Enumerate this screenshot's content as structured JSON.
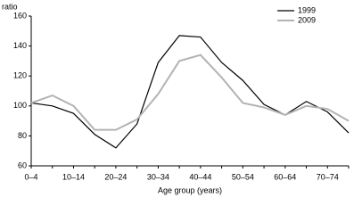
{
  "chart_data": {
    "type": "line",
    "y_label": "ratio",
    "x_label": "Age group (years)",
    "categories": [
      "0–4",
      null,
      "10–14",
      null,
      "20–24",
      null,
      "30–34",
      null,
      "40–44",
      null,
      "50–54",
      null,
      "60–64",
      null,
      "70–74",
      null
    ],
    "series": [
      {
        "name": "1999",
        "color": "#000000",
        "values": [
          102,
          100,
          95,
          81,
          72,
          88,
          129,
          147,
          146,
          129,
          117,
          101,
          94,
          103,
          96,
          82
        ]
      },
      {
        "name": "2009",
        "color": "#b3b3b3",
        "values": [
          102,
          107,
          100,
          84,
          84,
          91,
          108,
          130,
          134,
          119,
          102,
          99,
          94,
          100,
          98,
          90
        ]
      }
    ],
    "ylim": [
      60,
      160
    ],
    "yticks": [
      60,
      80,
      100,
      120,
      140,
      160
    ],
    "grid": false,
    "legend": "top-right"
  }
}
